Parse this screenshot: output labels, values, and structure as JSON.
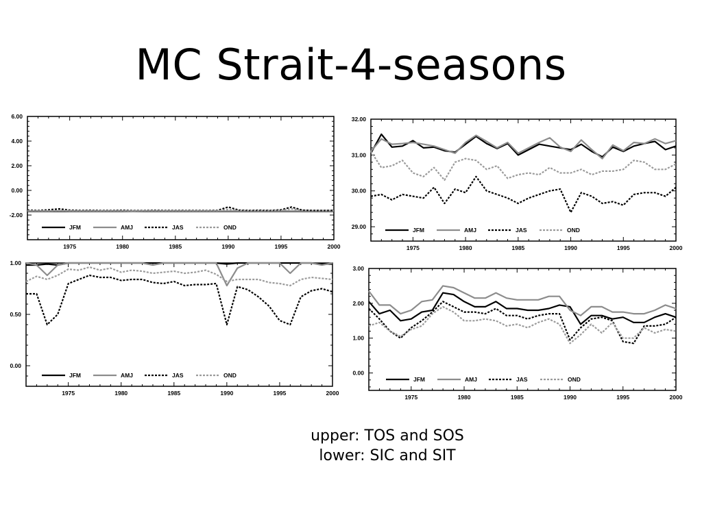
{
  "title": "MC Strait-4-seasons",
  "caption": [
    "upper: TOS and SOS",
    "lower: SIC and SIT"
  ],
  "series_styles": [
    {
      "name": "JFM",
      "color": "#000000",
      "dash": ""
    },
    {
      "name": "AMJ",
      "color": "#8c8c8c",
      "dash": ""
    },
    {
      "name": "JAS",
      "color": "#000000",
      "dash": "3,2"
    },
    {
      "name": "OND",
      "color": "#9a9a9a",
      "dash": "3,2"
    }
  ],
  "chart_data": [
    {
      "type": "line",
      "xlim": [
        1971,
        2000
      ],
      "ylim": [
        -4,
        6
      ],
      "yticks": [
        -2,
        0,
        2,
        4,
        6
      ],
      "ytick_labels": [
        "-2.00",
        "0.00",
        "2.00",
        "4.00",
        "6.00"
      ],
      "xticks": [
        1975,
        1980,
        1985,
        1990,
        1995,
        2000
      ],
      "x": [
        1971,
        1972,
        1973,
        1974,
        1975,
        1976,
        1977,
        1978,
        1979,
        1980,
        1981,
        1982,
        1983,
        1984,
        1985,
        1986,
        1987,
        1988,
        1989,
        1990,
        1991,
        1992,
        1993,
        1994,
        1995,
        1996,
        1997,
        1998,
        1999,
        2000
      ],
      "series": [
        {
          "name": "JFM",
          "values": [
            -1.7,
            -1.7,
            -1.7,
            -1.7,
            -1.7,
            -1.7,
            -1.7,
            -1.7,
            -1.7,
            -1.7,
            -1.7,
            -1.7,
            -1.7,
            -1.7,
            -1.7,
            -1.7,
            -1.7,
            -1.7,
            -1.7,
            -1.7,
            -1.7,
            -1.7,
            -1.7,
            -1.7,
            -1.7,
            -1.7,
            -1.7,
            -1.7,
            -1.7,
            -1.7
          ]
        },
        {
          "name": "AMJ",
          "values": [
            -1.68,
            -1.67,
            -1.68,
            -1.66,
            -1.67,
            -1.68,
            -1.67,
            -1.68,
            -1.67,
            -1.68,
            -1.69,
            -1.68,
            -1.67,
            -1.68,
            -1.67,
            -1.67,
            -1.68,
            -1.67,
            -1.68,
            -1.68,
            -1.67,
            -1.68,
            -1.67,
            -1.68,
            -1.67,
            -1.68,
            -1.67,
            -1.68,
            -1.67,
            -1.68
          ]
        },
        {
          "name": "JAS",
          "values": [
            -1.6,
            -1.62,
            -1.58,
            -1.5,
            -1.6,
            -1.62,
            -1.61,
            -1.63,
            -1.62,
            -1.61,
            -1.63,
            -1.62,
            -1.61,
            -1.63,
            -1.62,
            -1.63,
            -1.62,
            -1.63,
            -1.62,
            -1.35,
            -1.6,
            -1.62,
            -1.61,
            -1.62,
            -1.58,
            -1.35,
            -1.6,
            -1.62,
            -1.63,
            -1.62
          ]
        },
        {
          "name": "OND",
          "values": [
            -1.65,
            -1.65,
            -1.66,
            -1.64,
            -1.65,
            -1.66,
            -1.65,
            -1.66,
            -1.65,
            -1.66,
            -1.65,
            -1.64,
            -1.65,
            -1.66,
            -1.65,
            -1.66,
            -1.65,
            -1.65,
            -1.66,
            -1.55,
            -1.64,
            -1.65,
            -1.65,
            -1.64,
            -1.62,
            -1.5,
            -1.63,
            -1.65,
            -1.64,
            -1.65
          ]
        }
      ]
    },
    {
      "type": "line",
      "xlim": [
        1971,
        2000
      ],
      "ylim": [
        28.6,
        32
      ],
      "yticks": [
        29,
        30,
        31,
        32
      ],
      "ytick_labels": [
        "29.00",
        "30.00",
        "31.00",
        "32.00"
      ],
      "xticks": [
        1975,
        1980,
        1985,
        1990,
        1995,
        2000
      ],
      "x": [
        1971,
        1972,
        1973,
        1974,
        1975,
        1976,
        1977,
        1978,
        1979,
        1980,
        1981,
        1982,
        1983,
        1984,
        1985,
        1986,
        1987,
        1988,
        1989,
        1990,
        1991,
        1992,
        1993,
        1994,
        1995,
        1996,
        1997,
        1998,
        1999,
        2000
      ],
      "series": [
        {
          "name": "JFM",
          "values": [
            31.05,
            31.58,
            31.22,
            31.25,
            31.4,
            31.2,
            31.22,
            31.12,
            31.08,
            31.3,
            31.52,
            31.32,
            31.18,
            31.32,
            31.0,
            31.15,
            31.3,
            31.25,
            31.2,
            31.15,
            31.3,
            31.1,
            30.95,
            31.22,
            31.1,
            31.25,
            31.32,
            31.38,
            31.15,
            31.25
          ]
        },
        {
          "name": "AMJ",
          "values": [
            31.1,
            31.45,
            31.3,
            31.32,
            31.35,
            31.3,
            31.25,
            31.15,
            31.05,
            31.35,
            31.55,
            31.38,
            31.2,
            31.35,
            31.05,
            31.2,
            31.35,
            31.48,
            31.22,
            31.1,
            31.42,
            31.15,
            30.9,
            31.28,
            31.12,
            31.35,
            31.32,
            31.45,
            31.32,
            31.4
          ]
        },
        {
          "name": "JAS",
          "values": [
            29.85,
            29.9,
            29.75,
            29.9,
            29.85,
            29.8,
            30.1,
            29.65,
            30.05,
            29.95,
            30.4,
            30.0,
            29.9,
            29.8,
            29.65,
            29.8,
            29.9,
            30.0,
            30.05,
            29.4,
            29.95,
            29.85,
            29.65,
            29.7,
            29.6,
            29.9,
            29.95,
            29.95,
            29.85,
            30.1
          ]
        },
        {
          "name": "OND",
          "values": [
            31.1,
            30.65,
            30.7,
            30.85,
            30.5,
            30.4,
            30.65,
            30.3,
            30.8,
            30.9,
            30.85,
            30.6,
            30.7,
            30.35,
            30.45,
            30.5,
            30.45,
            30.65,
            30.5,
            30.5,
            30.6,
            30.45,
            30.55,
            30.55,
            30.6,
            30.85,
            30.8,
            30.6,
            30.6,
            30.75
          ]
        }
      ]
    },
    {
      "type": "line",
      "xlim": [
        1971,
        2000
      ],
      "ylim": [
        -0.2,
        1
      ],
      "yticks": [
        0,
        0.5,
        1
      ],
      "ytick_labels": [
        "0.00",
        "0.50",
        "1.00"
      ],
      "xticks": [
        1975,
        1980,
        1985,
        1990,
        1995,
        2000
      ],
      "x": [
        1971,
        1972,
        1973,
        1974,
        1975,
        1976,
        1977,
        1978,
        1979,
        1980,
        1981,
        1982,
        1983,
        1984,
        1985,
        1986,
        1987,
        1988,
        1989,
        1990,
        1991,
        1992,
        1993,
        1994,
        1995,
        1996,
        1997,
        1998,
        1999,
        2000
      ],
      "series": [
        {
          "name": "JFM",
          "values": [
            0.98,
            0.98,
            0.99,
            0.98,
            1.0,
            1.0,
            1.0,
            1.0,
            1.0,
            1.0,
            1.0,
            1.0,
            1.0,
            1.0,
            1.0,
            1.0,
            1.0,
            1.0,
            1.0,
            0.99,
            1.0,
            1.0,
            1.0,
            1.0,
            1.0,
            1.0,
            1.0,
            1.0,
            0.99,
            0.99
          ]
        },
        {
          "name": "AMJ",
          "values": [
            1.0,
            0.98,
            0.88,
            0.98,
            1.0,
            1.0,
            1.0,
            1.0,
            1.0,
            1.0,
            1.0,
            1.0,
            0.98,
            1.0,
            1.0,
            1.0,
            1.0,
            1.0,
            1.0,
            0.78,
            0.95,
            1.0,
            1.0,
            1.0,
            1.0,
            0.9,
            1.0,
            1.0,
            0.98,
            1.0
          ]
        },
        {
          "name": "JAS",
          "values": [
            0.7,
            0.7,
            0.4,
            0.5,
            0.8,
            0.84,
            0.88,
            0.86,
            0.86,
            0.83,
            0.84,
            0.84,
            0.81,
            0.8,
            0.82,
            0.78,
            0.79,
            0.79,
            0.8,
            0.4,
            0.77,
            0.74,
            0.67,
            0.58,
            0.44,
            0.4,
            0.67,
            0.73,
            0.75,
            0.72
          ]
        },
        {
          "name": "OND",
          "values": [
            0.82,
            0.87,
            0.84,
            0.88,
            0.94,
            0.93,
            0.96,
            0.93,
            0.95,
            0.91,
            0.93,
            0.92,
            0.9,
            0.91,
            0.92,
            0.9,
            0.91,
            0.93,
            0.89,
            0.82,
            0.84,
            0.84,
            0.84,
            0.81,
            0.8,
            0.78,
            0.84,
            0.86,
            0.85,
            0.84
          ]
        }
      ]
    },
    {
      "type": "line",
      "xlim": [
        1971,
        2000
      ],
      "ylim": [
        -0.5,
        3
      ],
      "yticks": [
        0,
        1,
        2,
        3
      ],
      "ytick_labels": [
        "0.00",
        "1.00",
        "2.00",
        "3.00"
      ],
      "xticks": [
        1975,
        1980,
        1985,
        1990,
        1995,
        2000
      ],
      "x": [
        1971,
        1972,
        1973,
        1974,
        1975,
        1976,
        1977,
        1978,
        1979,
        1980,
        1981,
        1982,
        1983,
        1984,
        1985,
        1986,
        1987,
        1988,
        1989,
        1990,
        1991,
        1992,
        1993,
        1994,
        1995,
        1996,
        1997,
        1998,
        1999,
        2000
      ],
      "series": [
        {
          "name": "JFM",
          "values": [
            2.05,
            1.7,
            1.8,
            1.5,
            1.55,
            1.75,
            1.8,
            2.3,
            2.25,
            2.05,
            1.9,
            1.9,
            2.05,
            1.85,
            1.85,
            1.8,
            1.8,
            1.85,
            1.95,
            1.9,
            1.4,
            1.65,
            1.65,
            1.55,
            1.6,
            1.45,
            1.45,
            1.6,
            1.7,
            1.6
          ]
        },
        {
          "name": "AMJ",
          "values": [
            2.35,
            1.95,
            1.95,
            1.7,
            1.8,
            2.05,
            2.1,
            2.5,
            2.45,
            2.3,
            2.15,
            2.15,
            2.3,
            2.15,
            2.1,
            2.1,
            2.1,
            2.2,
            2.2,
            1.8,
            1.65,
            1.9,
            1.9,
            1.75,
            1.75,
            1.7,
            1.7,
            1.8,
            1.95,
            1.85
          ]
        },
        {
          "name": "JAS",
          "values": [
            1.85,
            1.55,
            1.2,
            1.0,
            1.3,
            1.5,
            1.75,
            2.05,
            1.9,
            1.75,
            1.75,
            1.7,
            1.85,
            1.65,
            1.65,
            1.55,
            1.65,
            1.7,
            1.7,
            0.95,
            1.3,
            1.55,
            1.6,
            1.5,
            0.9,
            0.85,
            1.35,
            1.35,
            1.4,
            1.6
          ]
        },
        {
          "name": "OND",
          "values": [
            1.35,
            1.45,
            1.2,
            1.05,
            1.25,
            1.35,
            1.7,
            1.9,
            1.75,
            1.5,
            1.5,
            1.55,
            1.5,
            1.35,
            1.4,
            1.3,
            1.45,
            1.55,
            1.4,
            0.85,
            1.1,
            1.4,
            1.15,
            1.45,
            1.0,
            1.0,
            1.3,
            1.15,
            1.25,
            1.2
          ]
        }
      ]
    }
  ]
}
